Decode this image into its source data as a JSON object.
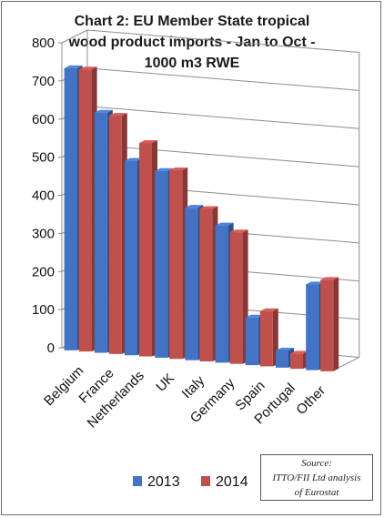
{
  "title_lines": [
    "Chart 2: EU Member State tropical",
    "wood product imports - Jan to Oct -",
    "1000 m3 RWE"
  ],
  "source_lines": [
    "Source:",
    "ITTO/FII Ltd analysis",
    "of Eurostat"
  ],
  "colors": {
    "series_2013": "#4472c4",
    "series_2014": "#c0504d"
  },
  "chart_data": {
    "type": "bar",
    "title": "Chart 2: EU Member State tropical wood product imports - Jan to Oct - 1000 m3 RWE",
    "categories": [
      "Belgium",
      "France",
      "Netherlands",
      "UK",
      "Italy",
      "Germany",
      "Spain",
      "Portugal",
      "Other"
    ],
    "series": [
      {
        "name": "2013",
        "values": [
          740,
          630,
          510,
          490,
          400,
          360,
          125,
          45,
          225
        ]
      },
      {
        "name": "2014",
        "values": [
          740,
          625,
          560,
          495,
          400,
          345,
          145,
          40,
          240
        ]
      }
    ],
    "y_ticks": [
      0,
      100,
      200,
      300,
      400,
      500,
      600,
      700,
      800
    ],
    "ylim": [
      0,
      800
    ],
    "grid": true,
    "legend_position": "bottom",
    "style": "3d-clustered-column"
  }
}
